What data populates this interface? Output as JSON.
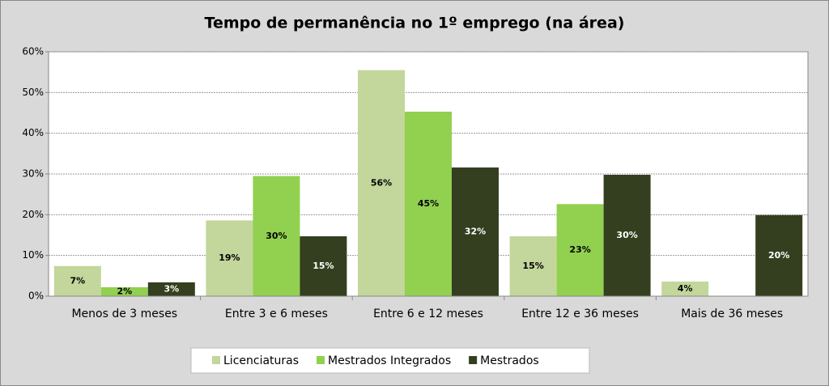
{
  "chart_data": {
    "type": "bar",
    "title": "Tempo de permanência no 1º emprego (na área)",
    "categories": [
      "Menos de 3 meses",
      "Entre 3 e 6 meses",
      "Entre 6 e 12 meses",
      "Entre 12 e 36 meses",
      "Mais de 36 meses"
    ],
    "series": [
      {
        "name": "Licenciaturas",
        "color": "#c3d69b",
        "values": [
          7.4,
          18.6,
          55.5,
          14.7,
          3.6
        ],
        "value_labels": [
          "7%",
          "19%",
          "56%",
          "15%",
          "4%"
        ]
      },
      {
        "name": "Mestrados Integrados",
        "color": "#92d050",
        "values": [
          2.2,
          29.5,
          45.3,
          22.6,
          null
        ],
        "value_labels": [
          "2%",
          "30%",
          "45%",
          "23%",
          null
        ]
      },
      {
        "name": "Mestrados",
        "color": "#333f1f",
        "values": [
          3.4,
          14.7,
          31.6,
          29.8,
          19.9
        ],
        "value_labels": [
          "3%",
          "15%",
          "32%",
          "30%",
          "20%"
        ]
      }
    ],
    "ylim": [
      0,
      60
    ],
    "yticks": [
      {
        "value": 0,
        "label": "0%"
      },
      {
        "value": 10,
        "label": "10%"
      },
      {
        "value": 20,
        "label": "20%"
      },
      {
        "value": 30,
        "label": "30%"
      },
      {
        "value": 40,
        "label": "40%"
      },
      {
        "value": 50,
        "label": "50%"
      },
      {
        "value": 60,
        "label": "60%"
      }
    ],
    "grid": true,
    "legend": "bottom"
  }
}
